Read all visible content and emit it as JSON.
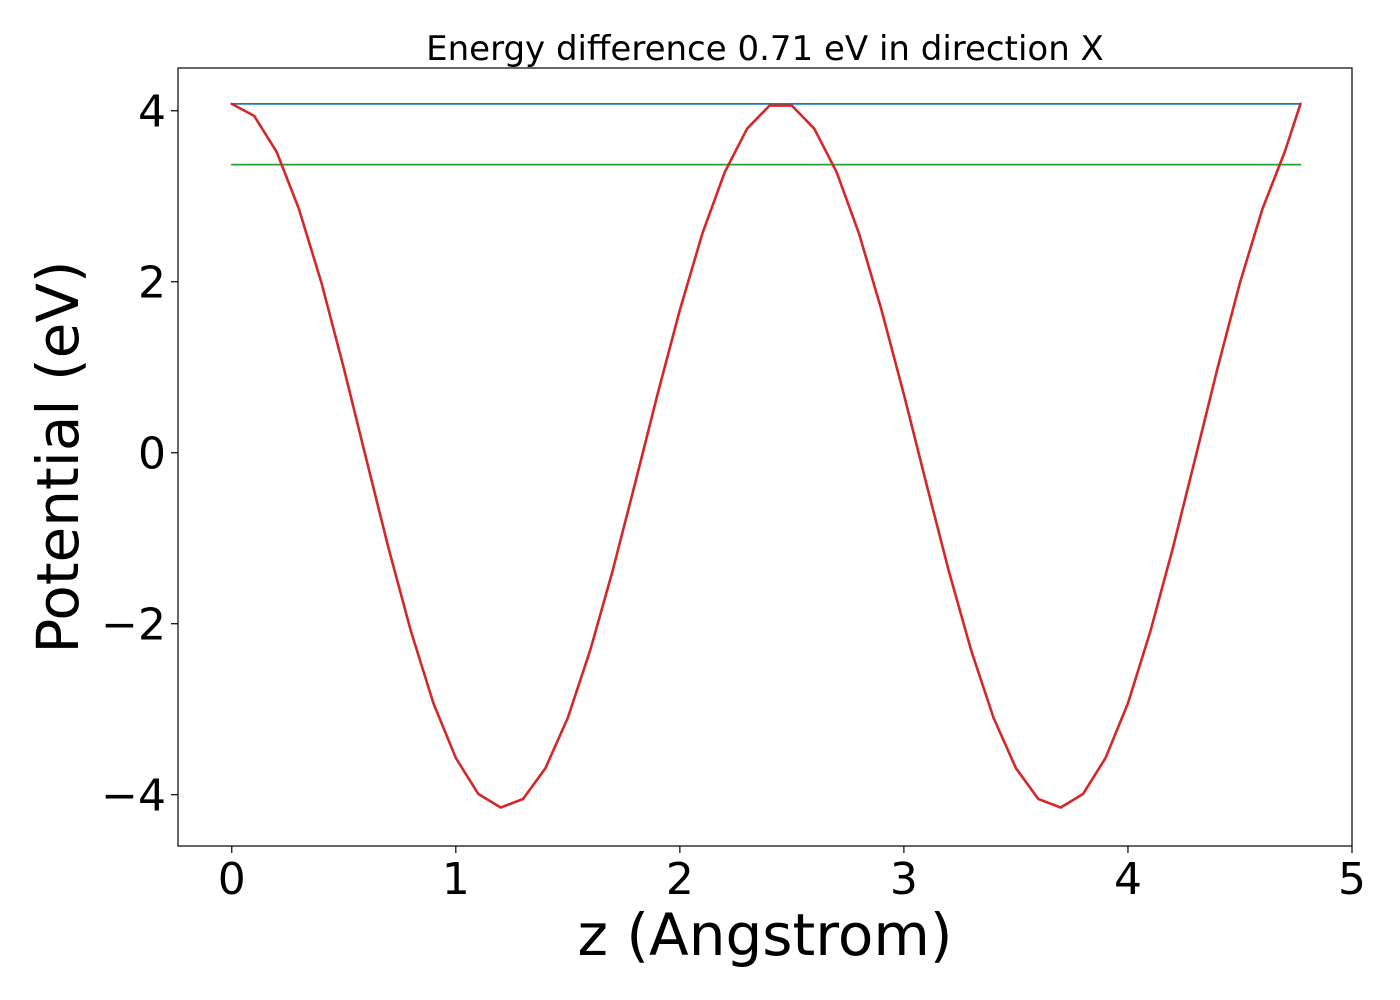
{
  "chart_data": {
    "type": "line",
    "title": "Energy difference 0.71 eV in direction X",
    "xlabel": "z (Angstrom)",
    "ylabel": "Potential (eV)",
    "xlim": [
      -0.24,
      5.0
    ],
    "ylim": [
      -4.6,
      4.5
    ],
    "x_ticks": [
      0,
      1,
      2,
      3,
      4,
      5
    ],
    "x_tick_labels": [
      "0",
      "1",
      "2",
      "3",
      "4",
      "5"
    ],
    "y_ticks": [
      -4,
      -2,
      0,
      2,
      4
    ],
    "y_tick_labels": [
      "−4",
      "−2",
      "0",
      "2",
      "4"
    ],
    "grid": false,
    "legend": "none",
    "series": [
      {
        "color": "#1f77b4",
        "x": [
          0,
          4.77
        ],
        "y": [
          4.08,
          4.08
        ]
      },
      {
        "color": "#2ca02c",
        "x": [
          0,
          4.77
        ],
        "y": [
          3.37,
          3.37
        ]
      },
      {
        "color": "#d62728",
        "x": [
          0,
          0.1,
          0.2,
          0.3,
          0.4,
          0.5,
          0.6,
          0.7,
          0.8,
          0.9,
          1.0,
          1.1,
          1.2,
          1.3,
          1.4,
          1.5,
          1.6,
          1.7,
          1.8,
          1.9,
          2.0,
          2.1,
          2.2,
          2.3,
          2.4,
          2.5,
          2.6,
          2.7,
          2.8,
          2.9,
          3.0,
          3.1,
          3.2,
          3.3,
          3.4,
          3.5,
          3.6,
          3.7,
          3.8,
          3.9,
          4.0,
          4.1,
          4.2,
          4.3,
          4.4,
          4.5,
          4.6,
          4.7,
          4.77
        ],
        "y": [
          4.08,
          3.94,
          3.52,
          2.85,
          1.99,
          0.99,
          -0.07,
          -1.12,
          -2.09,
          -2.93,
          -3.57,
          -3.99,
          -4.15,
          -4.05,
          -3.69,
          -3.1,
          -2.31,
          -1.38,
          -0.36,
          0.68,
          1.67,
          2.56,
          3.28,
          3.79,
          4.06,
          4.06,
          3.79,
          3.28,
          2.56,
          1.67,
          0.68,
          -0.36,
          -1.38,
          -2.31,
          -3.1,
          -3.69,
          -4.05,
          -4.15,
          -3.99,
          -3.57,
          -2.93,
          -2.09,
          -1.12,
          -0.07,
          0.99,
          1.99,
          2.85,
          3.52,
          4.08
        ]
      }
    ]
  }
}
